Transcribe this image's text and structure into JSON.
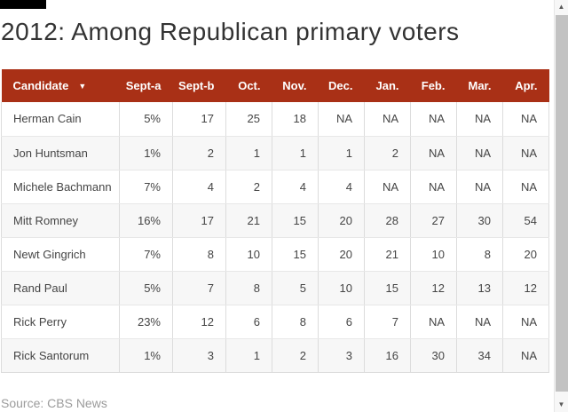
{
  "page": {
    "title": "2012: Among Republican primary voters",
    "source": "Source: CBS News"
  },
  "ui": {
    "sort_indicator": "▼",
    "scroll_up_arrow": "▲",
    "scroll_down_arrow": "▼"
  },
  "colors": {
    "header_bg": "#a93016",
    "top_bar": "#000000",
    "row_stripe": "#f7f7f7",
    "title_text": "#333333",
    "source_text": "#9b9b9b"
  },
  "chart_data": {
    "type": "table",
    "title": "2012: Among Republican primary voters",
    "columns": [
      "Candidate",
      "Sept-a",
      "Sept-b",
      "Oct.",
      "Nov.",
      "Dec.",
      "Jan.",
      "Feb.",
      "Mar.",
      "Apr."
    ],
    "rows": [
      [
        "Herman Cain",
        "5%",
        "17",
        "25",
        "18",
        "NA",
        "NA",
        "NA",
        "NA",
        "NA"
      ],
      [
        "Jon Huntsman",
        "1%",
        "2",
        "1",
        "1",
        "1",
        "2",
        "NA",
        "NA",
        "NA"
      ],
      [
        "Michele Bachmann",
        "7%",
        "4",
        "2",
        "4",
        "4",
        "NA",
        "NA",
        "NA",
        "NA"
      ],
      [
        "Mitt Romney",
        "16%",
        "17",
        "21",
        "15",
        "20",
        "28",
        "27",
        "30",
        "54"
      ],
      [
        "Newt Gingrich",
        "7%",
        "8",
        "10",
        "15",
        "20",
        "21",
        "10",
        "8",
        "20"
      ],
      [
        "Rand Paul",
        "5%",
        "7",
        "8",
        "5",
        "10",
        "15",
        "12",
        "13",
        "12"
      ],
      [
        "Rick Perry",
        "23%",
        "12",
        "6",
        "8",
        "6",
        "7",
        "NA",
        "NA",
        "NA"
      ],
      [
        "Rick Santorum",
        "1%",
        "3",
        "1",
        "2",
        "3",
        "16",
        "30",
        "34",
        "NA"
      ]
    ],
    "source": "Source: CBS News",
    "layout": {
      "sorted_column": "Candidate",
      "sort_direction": "descending",
      "first_column_align": "left",
      "value_columns_align": "right",
      "striped_rows": true
    }
  }
}
